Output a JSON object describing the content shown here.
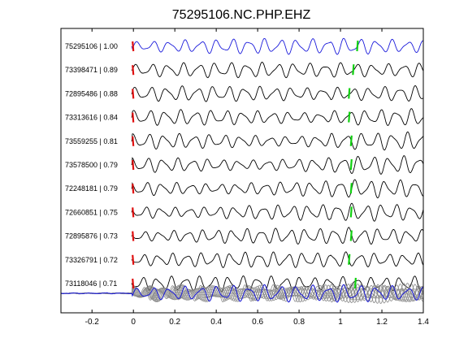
{
  "chart_data": {
    "type": "line",
    "title": "75295106.NC.PHP.EHZ",
    "xlabel": "",
    "ylabel": "",
    "xlim": [
      -0.35,
      1.4
    ],
    "x_ticks": [
      -0.2,
      0,
      0.2,
      0.4,
      0.6,
      0.8,
      1,
      1.2,
      1.4
    ],
    "x_tick_labels": [
      "-0.2",
      "0",
      "0.2",
      "0.4",
      "0.6",
      "0.8",
      "1",
      "1.2",
      "1.4"
    ],
    "grid": false,
    "colors": {
      "reference_trace": "#1a1adb",
      "trace": "#000000",
      "stack_trace": "#8a8a8a",
      "pick_p": "#e01010",
      "pick_s": "#10d010"
    },
    "traces": [
      {
        "event_id": "75295106",
        "correlation": "1.00",
        "label": "75295106 | 1.00",
        "p_pick": 0.0,
        "s_pick": 1.08,
        "reference": true
      },
      {
        "event_id": "73398471",
        "correlation": "0.89",
        "label": "73398471 | 0.89",
        "p_pick": 0.0,
        "s_pick": 1.06,
        "reference": false
      },
      {
        "event_id": "72895486",
        "correlation": "0.88",
        "label": "72895486 | 0.88",
        "p_pick": 0.0,
        "s_pick": 1.04,
        "reference": false
      },
      {
        "event_id": "73313616",
        "correlation": "0.84",
        "label": "73313616 | 0.84",
        "p_pick": 0.0,
        "s_pick": 1.04,
        "reference": false
      },
      {
        "event_id": "73559255",
        "correlation": "0.81",
        "label": "73559255 | 0.81",
        "p_pick": 0.0,
        "s_pick": 1.05,
        "reference": false
      },
      {
        "event_id": "73578500",
        "correlation": "0.79",
        "label": "73578500 | 0.79",
        "p_pick": 0.0,
        "s_pick": 1.05,
        "reference": false
      },
      {
        "event_id": "72248181",
        "correlation": "0.79",
        "label": "72248181 | 0.79",
        "p_pick": 0.0,
        "s_pick": 1.05,
        "reference": false
      },
      {
        "event_id": "72660851",
        "correlation": "0.75",
        "label": "72660851 | 0.75",
        "p_pick": 0.0,
        "s_pick": 1.05,
        "reference": false
      },
      {
        "event_id": "72895876",
        "correlation": "0.73",
        "label": "72895876 | 0.73",
        "p_pick": 0.0,
        "s_pick": 1.05,
        "reference": false
      },
      {
        "event_id": "73326791",
        "correlation": "0.72",
        "label": "73326791 | 0.72",
        "p_pick": 0.0,
        "s_pick": 1.04,
        "reference": false
      },
      {
        "event_id": "73118046",
        "correlation": "0.71",
        "label": "73118046 | 0.71",
        "p_pick": 0.0,
        "s_pick": 1.07,
        "reference": false
      }
    ],
    "stack_row": {
      "has_label": false,
      "signal_start": 0.0
    }
  }
}
